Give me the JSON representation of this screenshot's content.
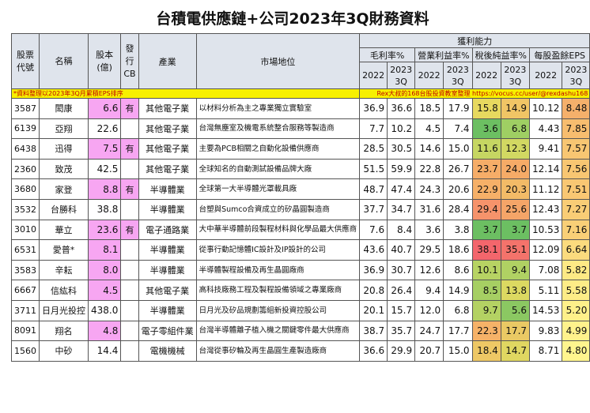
{
  "title": "台積電供應鏈+公司2023年3Q財務資料",
  "headers": {
    "code": "股票\n代號",
    "name": "名稱",
    "capital": "股本\n(億)",
    "cb": "發行\nCB",
    "industry": "產業",
    "position": "市場地位",
    "profit_group": "獲利能力",
    "metrics": [
      "毛利率%",
      "營業利益率%",
      "稅後純益率%",
      "每股盈餘EPS"
    ],
    "period_a": "2022",
    "period_b": "2023\n3Q"
  },
  "note_left": "*資料整理以2023年3Q月累積EPS排序",
  "note_right": "Rex大叔的168台股投資教室整理 https://vocus.cc/user/@rexdashu168",
  "colors": {
    "header_bg": "#dfe4ec",
    "capital_highlight": "#f7a6f2",
    "note_bg": "#f7f000"
  },
  "rows": [
    {
      "code": "3587",
      "name": "閎康",
      "capital": "6.6",
      "cb": "有",
      "hl": true,
      "industry": "其他電子業",
      "position": "以材料分析為主之專業獨立實驗室",
      "gm22": "36.9",
      "gm23": "36.6",
      "om22": "18.5",
      "om23": "17.9",
      "nm22": "15.8",
      "nm23": "14.9",
      "eps22": "10.12",
      "eps23": "8.48",
      "c_nm22": "#e7d95f",
      "c_nm23": "#f0c565",
      "c_eps23": "#f5b06b"
    },
    {
      "code": "6139",
      "name": "亞翔",
      "capital": "22.6",
      "cb": "",
      "hl": false,
      "industry": "其他電子業",
      "position": "台灣無塵室及機電系統整合服務等製造商",
      "gm22": "7.7",
      "gm23": "10.2",
      "om22": "4.5",
      "om23": "7.4",
      "nm22": "3.6",
      "nm23": "6.8",
      "eps22": "4.43",
      "eps23": "7.85",
      "c_nm22": "#6cbf62",
      "c_nm23": "#9fcf63",
      "c_eps23": "#f7bd6f"
    },
    {
      "code": "6438",
      "name": "迅得",
      "capital": "7.5",
      "cb": "有",
      "hl": true,
      "industry": "其他電子業",
      "position": "主要為PCB相關之自動化設備供應商",
      "gm22": "28.5",
      "gm23": "30.5",
      "om22": "14.6",
      "om23": "15.0",
      "nm22": "11.6",
      "nm23": "12.3",
      "eps22": "9.41",
      "eps23": "7.57",
      "c_nm22": "#c6d662",
      "c_nm23": "#d2d862",
      "c_eps23": "#f8c672"
    },
    {
      "code": "2360",
      "name": "致茂",
      "capital": "42.5",
      "cb": "",
      "hl": false,
      "industry": "其他電子業",
      "position": "全球知名的自動測試設備品牌大廠",
      "gm22": "51.5",
      "gm23": "59.9",
      "om22": "22.8",
      "om23": "26.7",
      "nm22": "23.7",
      "nm23": "24.0",
      "eps22": "12.14",
      "eps23": "7.56",
      "c_nm22": "#f6ad68",
      "c_nm23": "#f6ab67",
      "c_eps23": "#f8c672"
    },
    {
      "code": "3680",
      "name": "家登",
      "capital": "8.8",
      "cb": "有",
      "hl": true,
      "industry": "半導體業",
      "position": "全球第一大半導體光罩載具廠",
      "gm22": "48.7",
      "gm23": "47.4",
      "om22": "24.3",
      "om23": "20.6",
      "nm22": "22.9",
      "nm23": "20.3",
      "eps22": "11.12",
      "eps23": "7.51",
      "c_nm22": "#f6b068",
      "c_nm23": "#f3bb67",
      "c_eps23": "#f9c773"
    },
    {
      "code": "3532",
      "name": "台勝科",
      "capital": "38.8",
      "cb": "",
      "hl": false,
      "industry": "半導體業",
      "position": "台塑與Sumco合資成立的矽晶圓製造商",
      "gm22": "37.7",
      "gm23": "34.7",
      "om22": "31.6",
      "om23": "28.4",
      "nm22": "29.4",
      "nm23": "25.6",
      "eps22": "12.43",
      "eps23": "7.27",
      "c_nm22": "#f6936b",
      "c_nm23": "#f5a568",
      "c_eps23": "#f9cd76"
    },
    {
      "code": "3010",
      "name": "華立",
      "capital": "23.6",
      "cb": "有",
      "hl": true,
      "industry": "電子通路業",
      "position": "大中華半導體前段製程材料與化學品最大供應商",
      "gm22": "7.6",
      "gm23": "8.4",
      "om22": "3.6",
      "om23": "3.8",
      "nm22": "3.7",
      "nm23": "3.7",
      "eps22": "10.53",
      "eps23": "7.16",
      "c_nm22": "#6cbf62",
      "c_nm23": "#6cbf62",
      "c_eps23": "#f9cf77"
    },
    {
      "code": "6531",
      "name": "愛普*",
      "capital": "8.1",
      "cb": "",
      "hl": true,
      "industry": "半導體業",
      "position": "從事行動記憶體IC設計及IP設計的公司",
      "gm22": "43.6",
      "gm23": "40.7",
      "om22": "29.5",
      "om23": "18.6",
      "nm22": "38.1",
      "nm23": "35.1",
      "eps22": "12.09",
      "eps23": "6.64",
      "c_nm22": "#f3666c",
      "c_nm23": "#f4736b",
      "c_eps23": "#fbdb7e"
    },
    {
      "code": "3583",
      "name": "辛耘",
      "capital": "8.0",
      "cb": "",
      "hl": true,
      "industry": "半導體業",
      "position": "半導體製程設備及再生晶圓廠商",
      "gm22": "36.9",
      "gm23": "30.7",
      "om22": "12.6",
      "om23": "8.6",
      "nm22": "10.1",
      "nm23": "9.4",
      "eps22": "7.08",
      "eps23": "5.82",
      "c_nm22": "#b7d363",
      "c_nm23": "#b0d163",
      "c_eps23": "#fde985"
    },
    {
      "code": "6667",
      "name": "信紘科",
      "capital": "4.5",
      "cb": "",
      "hl": true,
      "industry": "其他電子業",
      "position": "高科技廠務工程及製程設備領域之專業廠商",
      "gm22": "20.8",
      "gm23": "26.4",
      "om22": "9.4",
      "om23": "14.9",
      "nm22": "8.5",
      "nm23": "13.8",
      "eps22": "5.11",
      "eps23": "5.58",
      "c_nm22": "#a6cf63",
      "c_nm23": "#dcd961",
      "c_eps23": "#fdec87"
    },
    {
      "code": "3711",
      "name": "日月光投控",
      "capital": "438.0",
      "cb": "",
      "hl": false,
      "industry": "半導體業",
      "position": "日月光及矽品規劃籌組新投資控股公司",
      "gm22": "20.1",
      "gm23": "15.7",
      "om22": "12.0",
      "om23": "6.8",
      "nm22": "9.7",
      "nm23": "5.6",
      "eps22": "14.53",
      "eps23": "5.20",
      "c_nm22": "#b4d263",
      "c_nm23": "#8bc862",
      "c_eps23": "#fef08a"
    },
    {
      "code": "8091",
      "name": "翔名",
      "capital": "4.8",
      "cb": "",
      "hl": true,
      "industry": "電子零組件業",
      "position": "台灣半導體離子植入機之關鍵零件最大供應商",
      "gm22": "38.7",
      "gm23": "35.7",
      "om22": "24.7",
      "om23": "17.7",
      "nm22": "22.3",
      "nm23": "17.7",
      "eps22": "9.83",
      "eps23": "4.99",
      "c_nm22": "#f6b268",
      "c_nm23": "#eac964",
      "c_eps23": "#fff28c"
    },
    {
      "code": "1560",
      "name": "中砂",
      "capital": "14.4",
      "cb": "",
      "hl": false,
      "industry": "電機機械",
      "position": "台灣從事矽輪及再生晶圓生產製造廠商",
      "gm22": "36.6",
      "gm23": "29.9",
      "om22": "20.7",
      "om23": "15.0",
      "nm22": "18.4",
      "nm23": "14.7",
      "eps22": "8.71",
      "eps23": "4.80",
      "c_nm22": "#eec865",
      "c_nm23": "#e0d761",
      "c_eps23": "#fff58e"
    }
  ]
}
